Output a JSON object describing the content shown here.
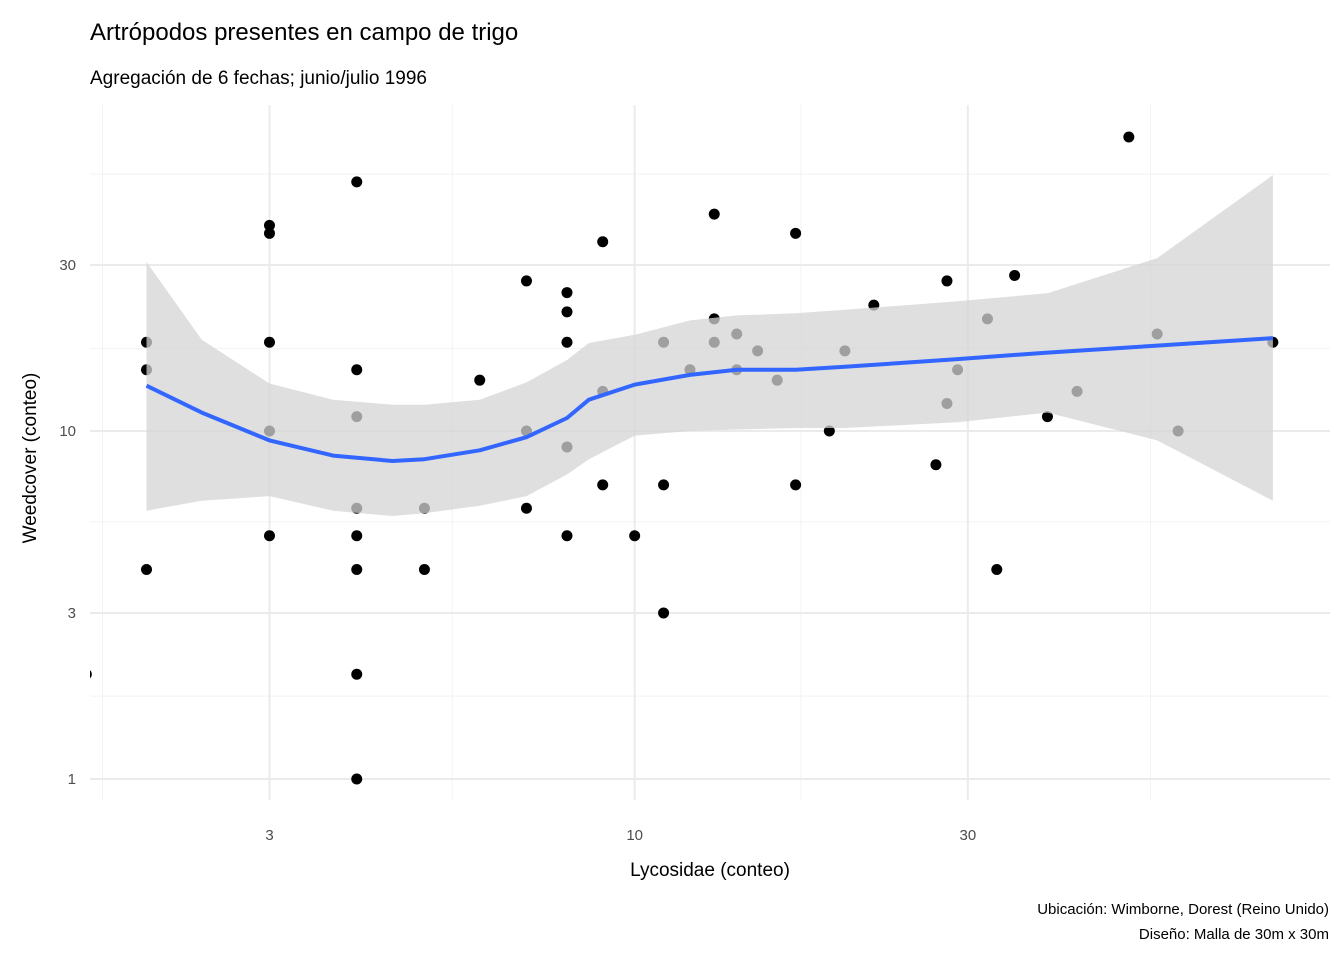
{
  "chart_data": {
    "type": "scatter",
    "title": "Artrópodos presentes en campo de trigo",
    "subtitle": "Agregación de 6 fechas; junio/julio 1996",
    "xlabel": "Lycosidae (conteo)",
    "ylabel": "Weedcover (conteo)",
    "caption": [
      "Ubicación: Wimborne, Dorest (Reino Unido)",
      "Diseño: Malla de 30m x 30m"
    ],
    "xscale": "log10",
    "yscale": "log10",
    "xlim": [
      1.66,
      99
    ],
    "ylim": [
      0.87,
      86.5
    ],
    "xticks": [
      3,
      10,
      30
    ],
    "xtick_labels": [
      "3",
      "10",
      "30"
    ],
    "xminor": [
      1.73,
      5.48,
      17.3,
      54.8
    ],
    "yticks": [
      1,
      3,
      10,
      30
    ],
    "ytick_labels": [
      "1",
      "3",
      "10",
      "30"
    ],
    "yminor": [
      1.73,
      5.48,
      17.3,
      54.8
    ],
    "grid": true,
    "points": [
      [
        1.64,
        2
      ],
      [
        2,
        18
      ],
      [
        2,
        15
      ],
      [
        2,
        4
      ],
      [
        3,
        39
      ],
      [
        3,
        37
      ],
      [
        3,
        18
      ],
      [
        3,
        10
      ],
      [
        3,
        5
      ],
      [
        4,
        52
      ],
      [
        4,
        15
      ],
      [
        4,
        11
      ],
      [
        4,
        6
      ],
      [
        4,
        5
      ],
      [
        4,
        4
      ],
      [
        4,
        2
      ],
      [
        4,
        1
      ],
      [
        5,
        6
      ],
      [
        5,
        4
      ],
      [
        6,
        14
      ],
      [
        7,
        27
      ],
      [
        7,
        10
      ],
      [
        7,
        6
      ],
      [
        8,
        25
      ],
      [
        8,
        22
      ],
      [
        8,
        18
      ],
      [
        8,
        9
      ],
      [
        8,
        5
      ],
      [
        9,
        35
      ],
      [
        9,
        13
      ],
      [
        9,
        7
      ],
      [
        10,
        5
      ],
      [
        11,
        18
      ],
      [
        11,
        7
      ],
      [
        11,
        3
      ],
      [
        12,
        15
      ],
      [
        13,
        42
      ],
      [
        13,
        21
      ],
      [
        13,
        18
      ],
      [
        14,
        19
      ],
      [
        14,
        15
      ],
      [
        15,
        17
      ],
      [
        16,
        14
      ],
      [
        17,
        37
      ],
      [
        17,
        7
      ],
      [
        19,
        10
      ],
      [
        20,
        17
      ],
      [
        22,
        23
      ],
      [
        27,
        8
      ],
      [
        28,
        27
      ],
      [
        28,
        12
      ],
      [
        29,
        15
      ],
      [
        32,
        21
      ],
      [
        33,
        4
      ],
      [
        35,
        28
      ],
      [
        39,
        11
      ],
      [
        43,
        13
      ],
      [
        51,
        70
      ],
      [
        56,
        19
      ],
      [
        60,
        10
      ],
      [
        82,
        18
      ]
    ],
    "smooth": {
      "color": "#3366FF",
      "ribbon_color": "#d4d4d4",
      "x": [
        2,
        2.4,
        3,
        3.7,
        4.5,
        5,
        6,
        7,
        8,
        8.6,
        10,
        12,
        14,
        17,
        20,
        29,
        39,
        56,
        82
      ],
      "y": [
        13.5,
        11.3,
        9.4,
        8.5,
        8.2,
        8.3,
        8.8,
        9.6,
        10.9,
        12.3,
        13.6,
        14.5,
        15.0,
        15.0,
        15.3,
        16.1,
        16.8,
        17.6,
        18.5
      ],
      "upper": [
        30.6,
        18.3,
        13.7,
        12.3,
        11.9,
        11.9,
        12.3,
        13.8,
        16.0,
        17.9,
        18.9,
        20.8,
        21.5,
        21.8,
        22.3,
        23.6,
        24.9,
        31.4,
        54.4
      ],
      "lower": [
        5.9,
        6.3,
        6.5,
        5.9,
        5.7,
        5.8,
        6.1,
        6.5,
        7.5,
        8.3,
        9.7,
        10.0,
        10.1,
        10.2,
        10.2,
        10.6,
        11.3,
        9.4,
        6.3
      ]
    }
  }
}
